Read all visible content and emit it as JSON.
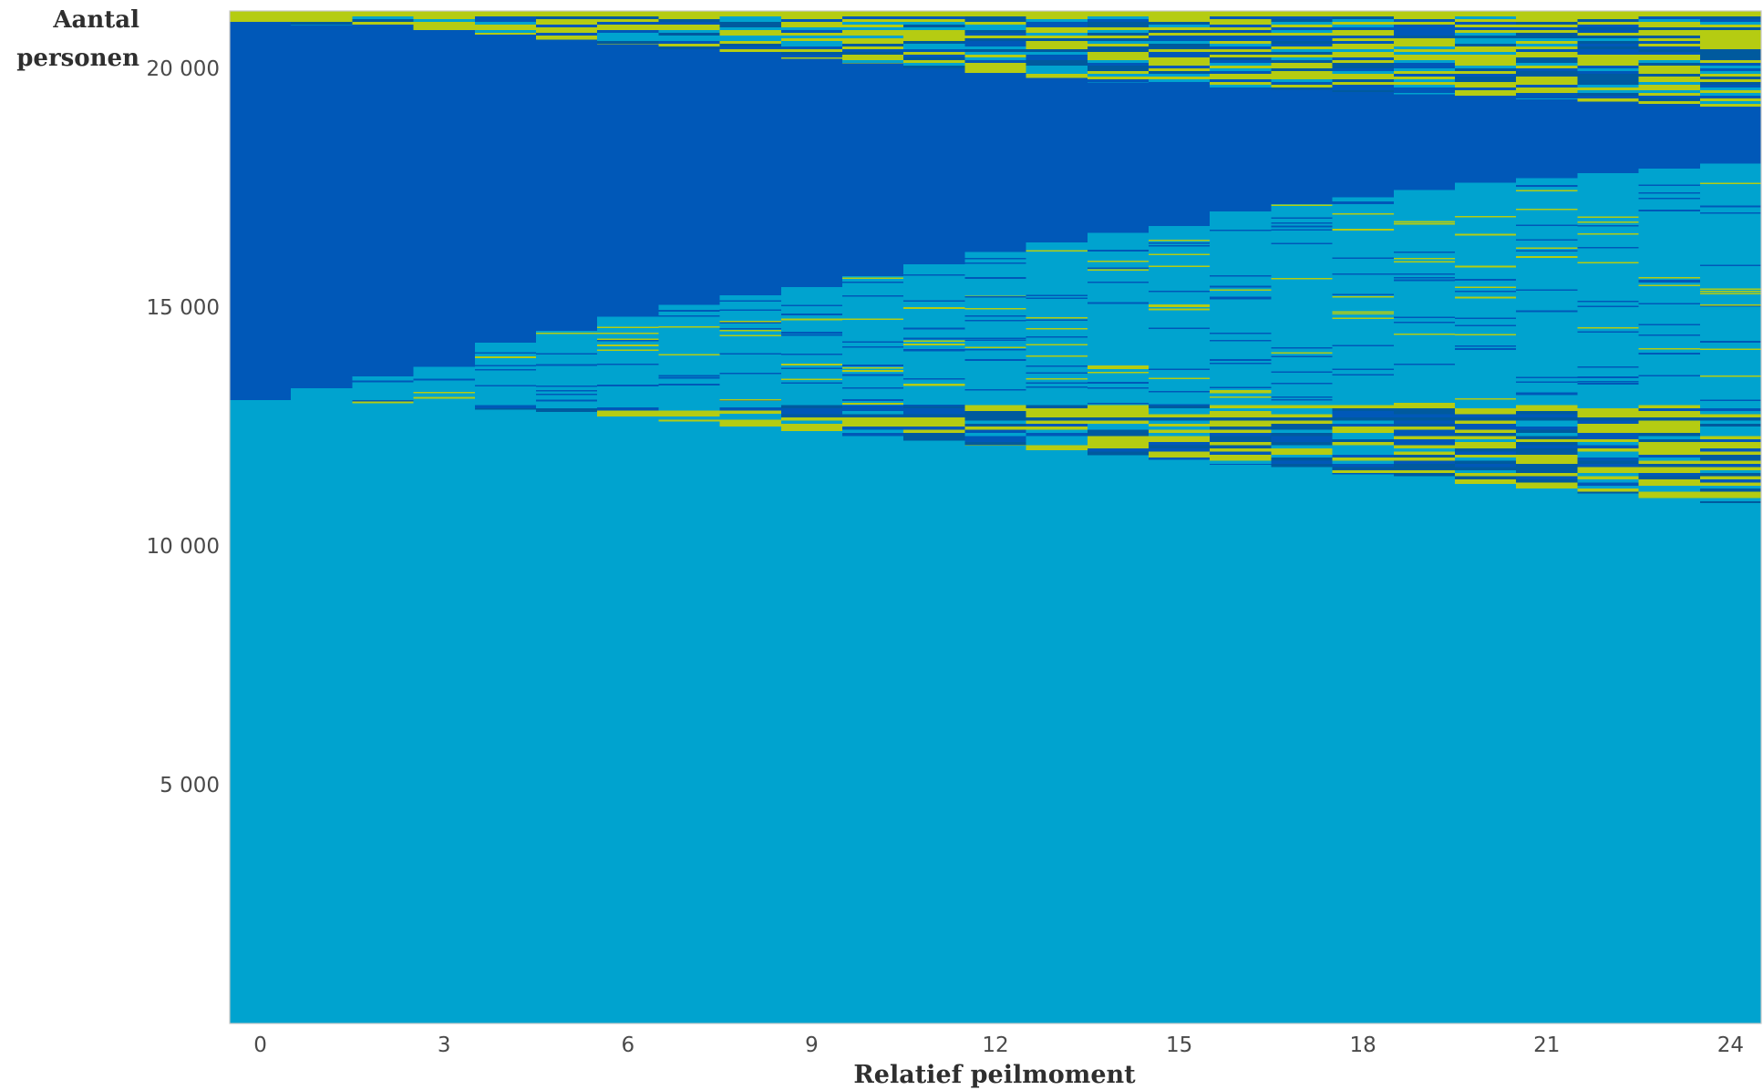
{
  "chart_data": {
    "type": "area",
    "ylabel_lines": [
      "Aantal",
      "personen"
    ],
    "xlabel": "Relatief peilmoment",
    "xlim": [
      0,
      24
    ],
    "ylim": [
      0,
      21200
    ],
    "x_ticks": [
      {
        "value": 0,
        "label": "0"
      },
      {
        "value": 3,
        "label": "3"
      },
      {
        "value": 6,
        "label": "6"
      },
      {
        "value": 9,
        "label": "9"
      },
      {
        "value": 12,
        "label": "12"
      },
      {
        "value": 15,
        "label": "15"
      },
      {
        "value": 18,
        "label": "18"
      },
      {
        "value": 21,
        "label": "21"
      },
      {
        "value": 24,
        "label": "24"
      }
    ],
    "y_ticks": [
      {
        "value": 5000,
        "label": "5 000"
      },
      {
        "value": 10000,
        "label": "10 000"
      },
      {
        "value": 15000,
        "label": "15 000"
      },
      {
        "value": 20000,
        "label": "20 000"
      }
    ],
    "x": [
      0,
      1,
      2,
      3,
      4,
      5,
      6,
      7,
      8,
      9,
      10,
      11,
      12,
      13,
      14,
      15,
      16,
      17,
      18,
      19,
      20,
      21,
      22,
      23,
      24
    ],
    "total": 21200,
    "colors": {
      "light_blue": "#00a3cf",
      "dark_blue": "#0058b8",
      "lime": "#b5cc12",
      "navy": "#005a9e"
    },
    "boundaries": {
      "light_base_top": [
        13050,
        13000,
        12950,
        12900,
        12850,
        12800,
        12700,
        12600,
        12500,
        12400,
        12300,
        12200,
        12100,
        12000,
        11900,
        11800,
        11700,
        11600,
        11500,
        11400,
        11300,
        11200,
        11100,
        11000,
        10900
      ],
      "mixed_low_top": [
        13050,
        13050,
        13050,
        13000,
        12950,
        12950,
        12900,
        12900,
        12900,
        12950,
        12950,
        12950,
        12950,
        12950,
        12950,
        12950,
        12950,
        12950,
        12950,
        12950,
        12950,
        12950,
        12950,
        12950,
        12950
      ],
      "light_mid_top": [
        13050,
        13300,
        13550,
        13750,
        14250,
        14500,
        14800,
        15050,
        15250,
        15450,
        15650,
        15900,
        16150,
        16350,
        16550,
        16700,
        17000,
        17150,
        17300,
        17450,
        17600,
        17700,
        17800,
        17900,
        18000
      ],
      "dark_top": [
        20950,
        20900,
        20850,
        20800,
        20700,
        20600,
        20500,
        20400,
        20300,
        20200,
        20100,
        20000,
        19900,
        19800,
        19700,
        19600,
        19600,
        19550,
        19500,
        19450,
        19400,
        19350,
        19300,
        19250,
        19200
      ]
    }
  }
}
